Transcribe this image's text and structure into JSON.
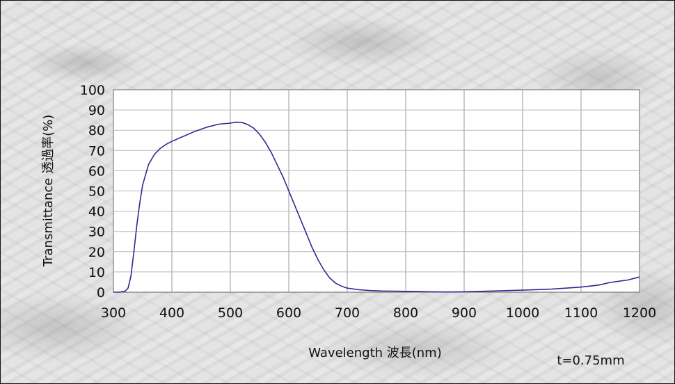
{
  "chart_data": {
    "type": "line",
    "xlabel": "Wavelength 波長(nm)",
    "ylabel": "Transmittance 透過率(%)",
    "annotation": "t=0.75mm",
    "xlim": [
      300,
      1200
    ],
    "ylim": [
      0,
      100
    ],
    "x_ticks": [
      "300",
      "400",
      "500",
      "600",
      "700",
      "800",
      "900",
      "1000",
      "1100",
      "1200"
    ],
    "y_ticks": [
      "100",
      "90",
      "80",
      "70",
      "60",
      "50",
      "40",
      "30",
      "20",
      "10",
      "0"
    ],
    "grid": true,
    "line_color": "#2b2b8f",
    "series": [
      {
        "x": [
          300,
          310,
          320,
          325,
          330,
          335,
          340,
          345,
          350,
          360,
          370,
          380,
          390,
          400,
          420,
          440,
          460,
          480,
          500,
          510,
          520,
          530,
          540,
          550,
          560,
          570,
          580,
          590,
          600,
          610,
          620,
          630,
          640,
          650,
          660,
          670,
          680,
          690,
          700,
          720,
          740,
          760,
          780,
          800,
          820,
          840,
          860,
          880,
          900,
          950,
          1000,
          1050,
          1100,
          1130,
          1150,
          1180,
          1200
        ],
        "y": [
          0,
          0,
          0.5,
          2,
          8,
          20,
          33,
          44,
          53,
          63,
          68,
          71,
          73,
          74.5,
          77,
          79.5,
          81.5,
          83,
          83.5,
          84,
          83.8,
          82.8,
          81,
          78,
          74,
          69,
          63,
          57,
          50,
          43,
          36,
          29,
          22,
          16,
          11,
          7,
          4.5,
          3,
          2,
          1.2,
          0.8,
          0.6,
          0.5,
          0.4,
          0.3,
          0.2,
          0.1,
          0.1,
          0.2,
          0.6,
          1,
          1.5,
          2.5,
          3.5,
          4.8,
          6,
          7.5
        ]
      }
    ]
  }
}
